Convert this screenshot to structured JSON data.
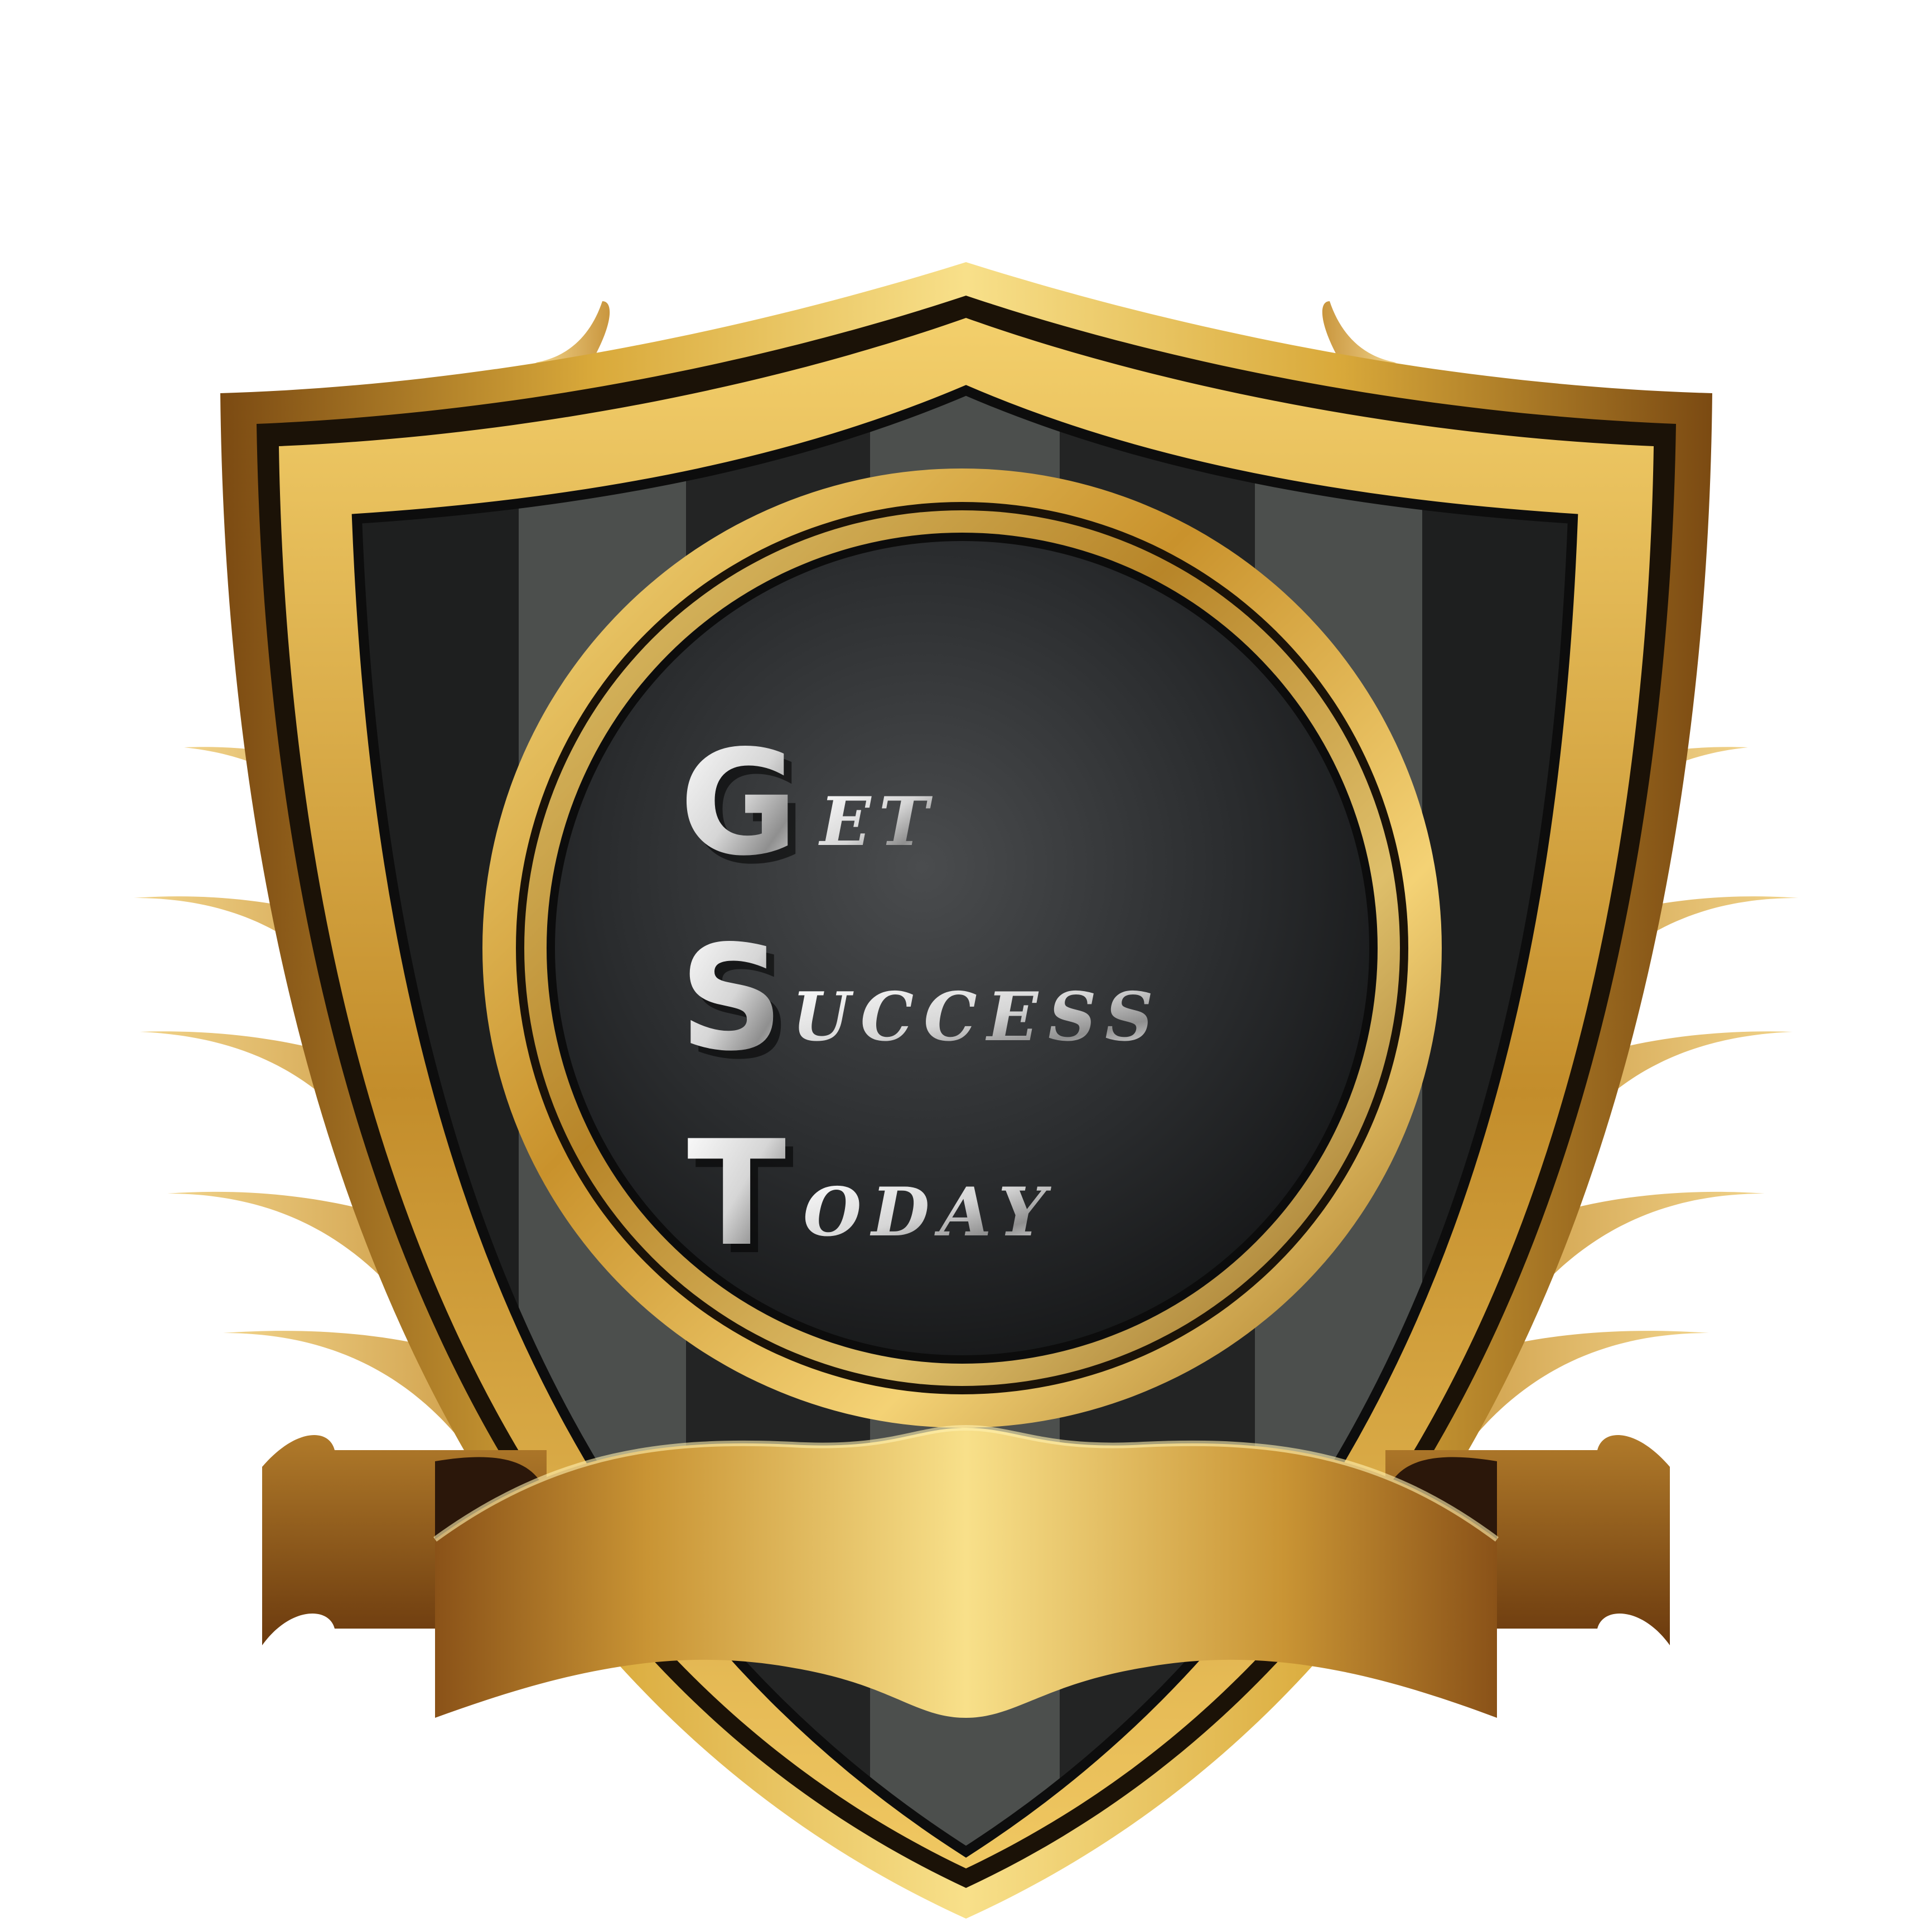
{
  "logo": {
    "lines": [
      {
        "initial": "G",
        "rest": "ET"
      },
      {
        "initial": "S",
        "rest": "UCCESS"
      },
      {
        "initial": "T",
        "rest": "ODAY"
      }
    ],
    "ribbon_text": ""
  },
  "colors": {
    "gold_light": "#f8e08a",
    "gold_mid": "#d9a93a",
    "gold_dark": "#8a5a17",
    "shield_dark": "#1e1f1f",
    "shield_stripe": "#4c4f4d",
    "emblem_dark": "#2c2e30",
    "wing": "#dcb160",
    "text_silver": "#e9e9e9"
  },
  "icons": [
    "shield-icon",
    "wings-icon",
    "ribbon-banner-icon"
  ]
}
